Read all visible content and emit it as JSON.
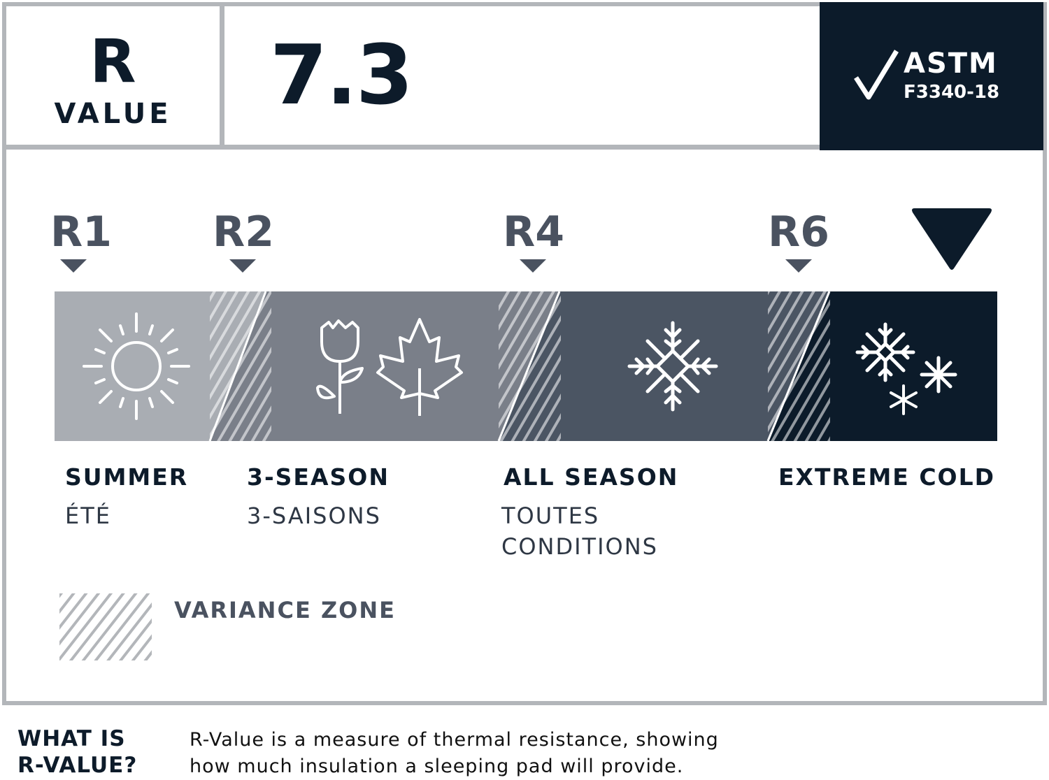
{
  "header": {
    "r_letter": "R",
    "r_word": "VALUE",
    "value": "7.3",
    "certification": {
      "name": "ASTM",
      "standard": "F3340-18",
      "icon": "checkmark-icon"
    }
  },
  "scale": {
    "markers": [
      {
        "label": "R1"
      },
      {
        "label": "R2"
      },
      {
        "label": "R4"
      },
      {
        "label": "R6"
      }
    ],
    "product_marker_icon": "large-down-triangle",
    "product_value": 7.3,
    "segments": [
      {
        "name": "SUMMER",
        "sub": "ÉTÉ",
        "sub2": "",
        "color": "#a9adb3",
        "icon": "sun-icon"
      },
      {
        "name": "3-SEASON",
        "sub": "3-SAISONS",
        "sub2": "",
        "color": "#7a7f89",
        "icon": "tulip-and-maple-leaf-icon"
      },
      {
        "name": "ALL SEASON",
        "sub": "TOUTES",
        "sub2": "CONDITIONS",
        "color": "#4b5563",
        "icon": "snowflake-icon"
      },
      {
        "name": "EXTREME COLD",
        "sub": "",
        "sub2": "",
        "color": "#0c1b2a",
        "icon": "snowflakes-icon"
      }
    ]
  },
  "legend": {
    "label": "VARIANCE ZONE"
  },
  "footer": {
    "heading_line1": "WHAT IS",
    "heading_line2": "R-VALUE?",
    "desc_line1": "R-Value is a measure of thermal resistance, showing",
    "desc_line2": "how much insulation a sleeping pad will provide."
  },
  "colors": {
    "dark": "#0c1b2a",
    "marker": "#4a5260",
    "border": "#b3b6ba"
  }
}
